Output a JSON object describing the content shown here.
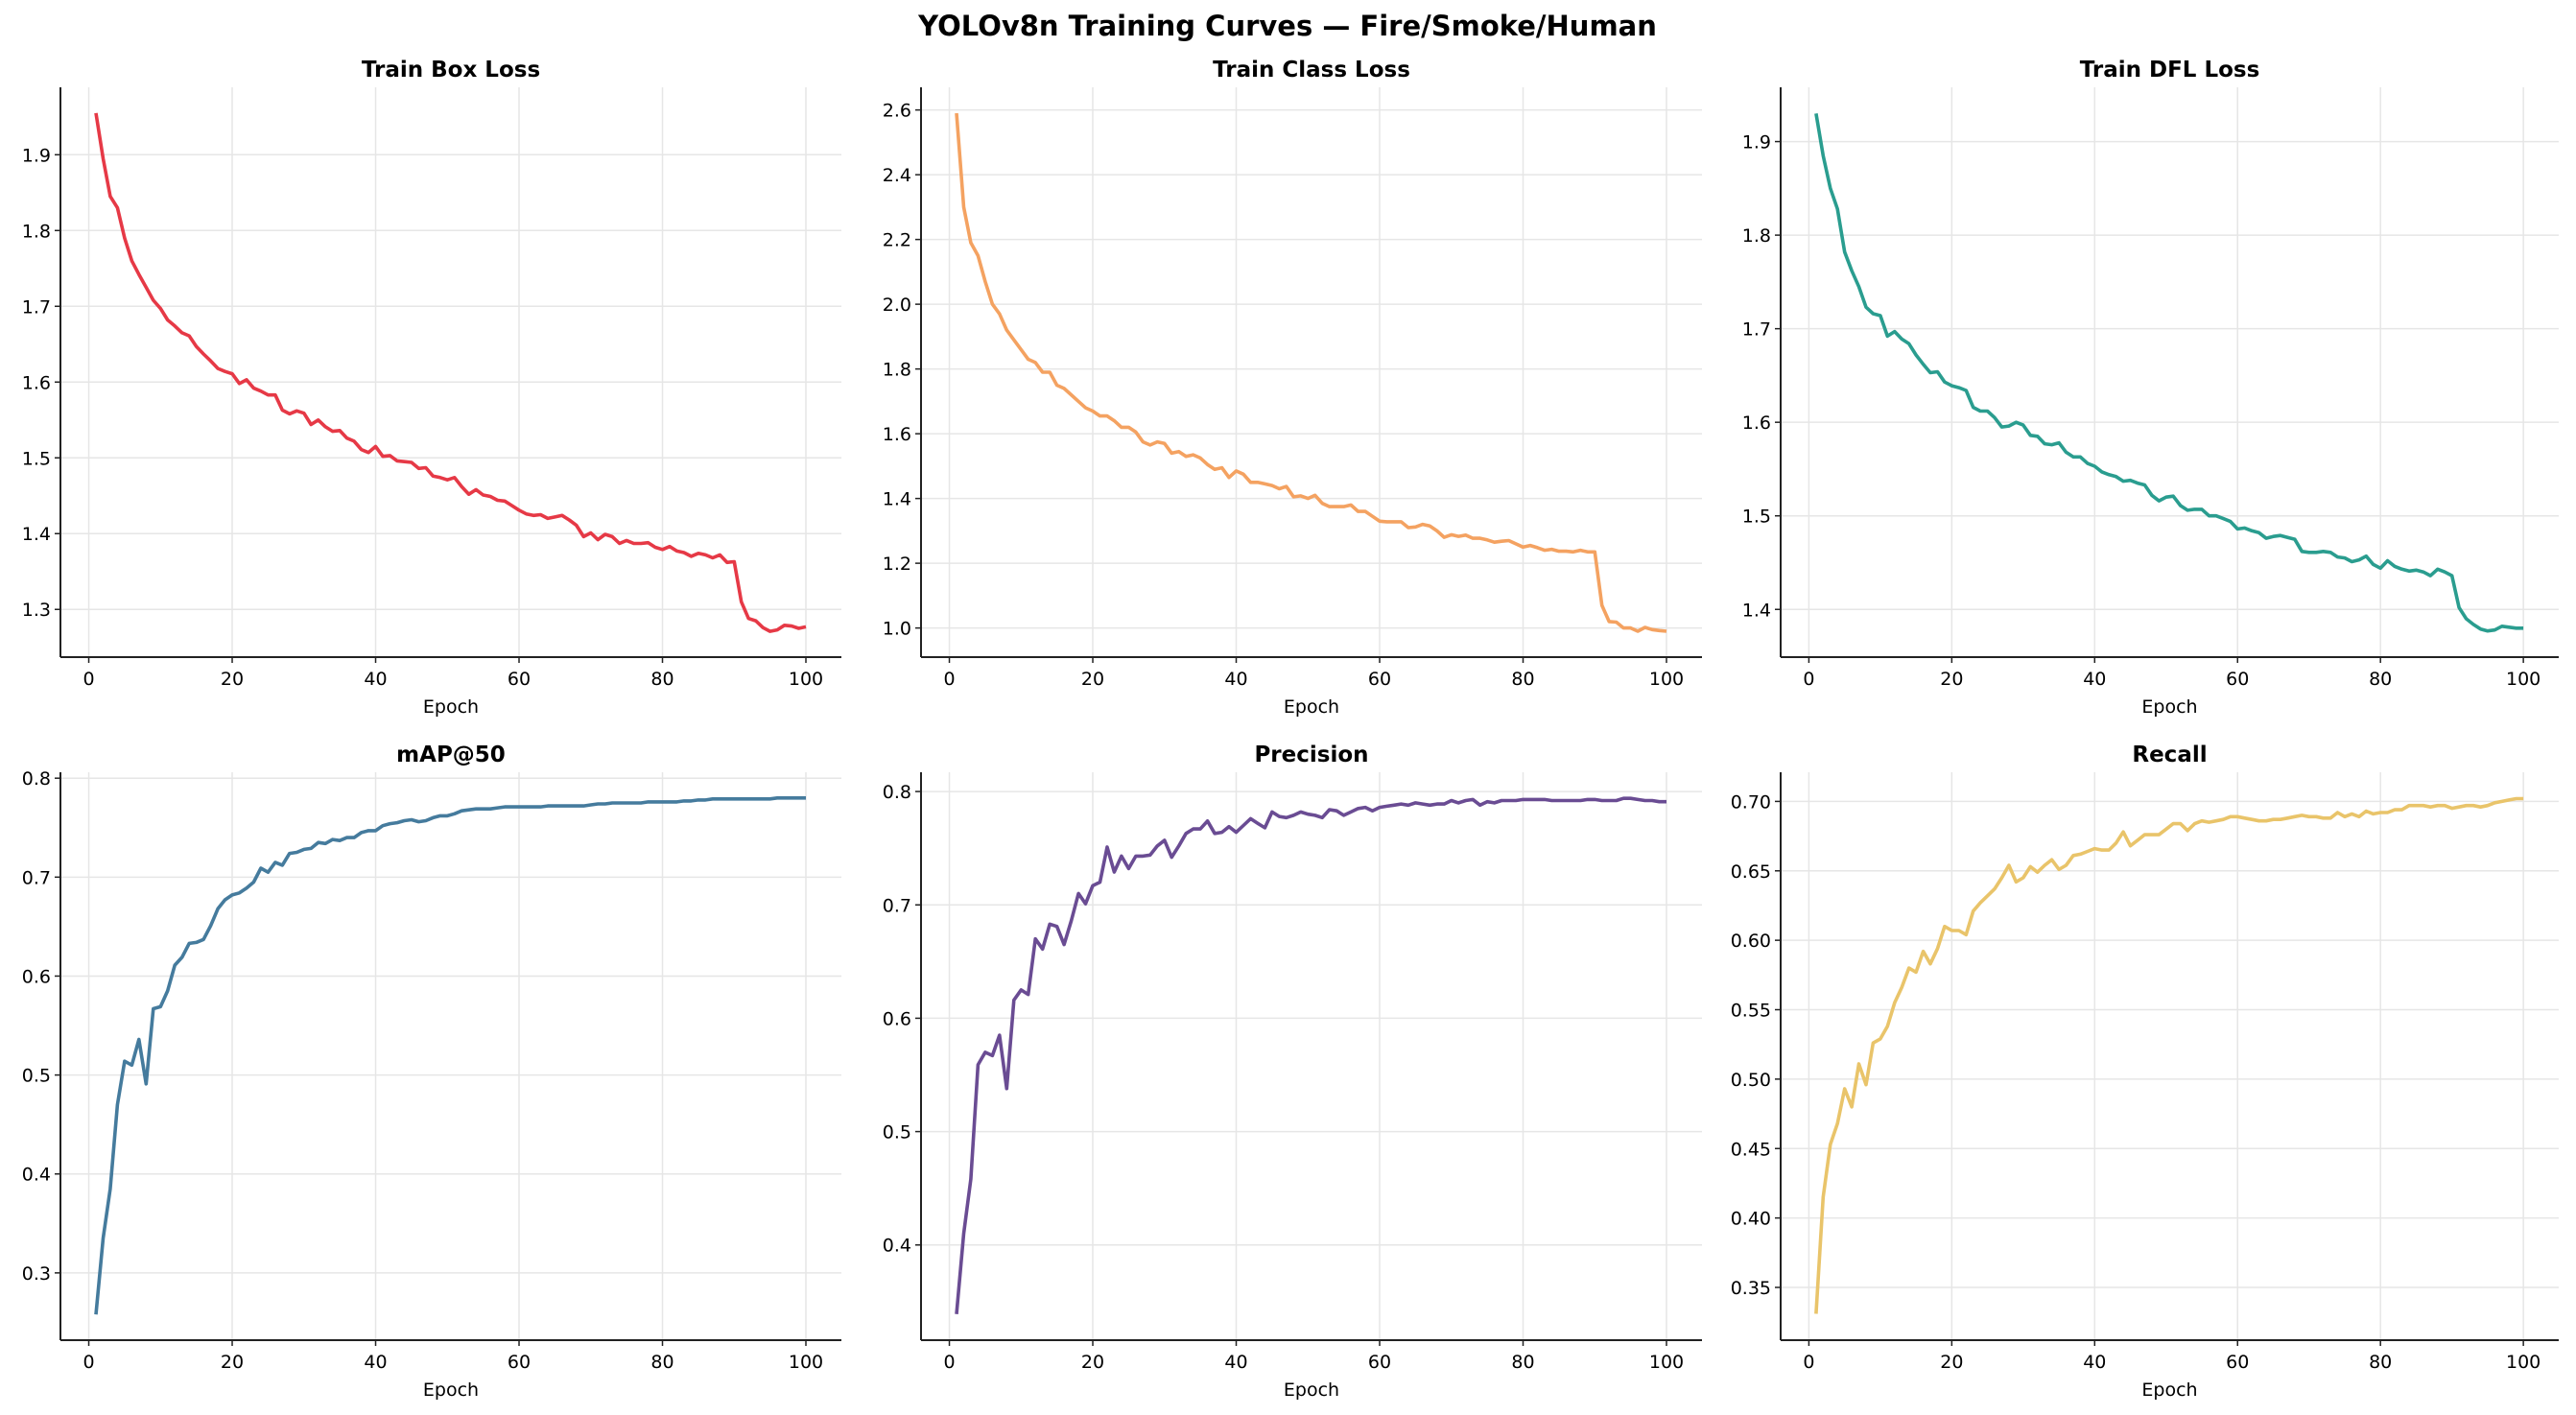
{
  "figure": {
    "title": "YOLOv8n Training Curves — Fire/Smoke/Human"
  },
  "chart_data": [
    {
      "type": "line",
      "title": "Train Box Loss",
      "xlabel": "Epoch",
      "ylabel": "",
      "color": "#e63946",
      "grid": true,
      "xlim": [
        -3.95,
        104.95
      ],
      "ylim": [
        1.237,
        1.989
      ],
      "xticks": [
        0,
        20,
        40,
        60,
        80,
        100
      ],
      "xtick_labels": [
        "0",
        "20",
        "40",
        "60",
        "80",
        "100"
      ],
      "yticks": [
        1.3,
        1.4,
        1.5,
        1.6,
        1.7,
        1.8,
        1.9
      ],
      "ytick_labels": [
        "1.3",
        "1.4",
        "1.5",
        "1.6",
        "1.7",
        "1.8",
        "1.9"
      ],
      "x_start": 1,
      "values": [
        1.955,
        1.895,
        1.845,
        1.83,
        1.79,
        1.76,
        1.742,
        1.725,
        1.708,
        1.697,
        1.682,
        1.674,
        1.665,
        1.661,
        1.647,
        1.637,
        1.628,
        1.618,
        1.614,
        1.611,
        1.598,
        1.603,
        1.592,
        1.588,
        1.583,
        1.583,
        1.563,
        1.558,
        1.562,
        1.559,
        1.544,
        1.55,
        1.541,
        1.535,
        1.536,
        1.526,
        1.522,
        1.511,
        1.507,
        1.515,
        1.502,
        1.503,
        1.496,
        1.495,
        1.494,
        1.486,
        1.487,
        1.476,
        1.474,
        1.471,
        1.474,
        1.462,
        1.452,
        1.458,
        1.451,
        1.449,
        1.444,
        1.443,
        1.437,
        1.431,
        1.426,
        1.424,
        1.425,
        1.42,
        1.422,
        1.424,
        1.418,
        1.411,
        1.396,
        1.401,
        1.392,
        1.399,
        1.396,
        1.387,
        1.391,
        1.387,
        1.387,
        1.388,
        1.382,
        1.379,
        1.383,
        1.377,
        1.375,
        1.37,
        1.374,
        1.372,
        1.368,
        1.372,
        1.362,
        1.363,
        1.31,
        1.288,
        1.285,
        1.276,
        1.271,
        1.273,
        1.279,
        1.278,
        1.275,
        1.277
      ]
    },
    {
      "type": "line",
      "title": "Train Class Loss",
      "xlabel": "Epoch",
      "ylabel": "",
      "color": "#f4a261",
      "grid": true,
      "xlim": [
        -3.95,
        104.95
      ],
      "ylim": [
        0.91,
        2.67
      ],
      "xticks": [
        0,
        20,
        40,
        60,
        80,
        100
      ],
      "xtick_labels": [
        "0",
        "20",
        "40",
        "60",
        "80",
        "100"
      ],
      "yticks": [
        1.0,
        1.2,
        1.4,
        1.6,
        1.8,
        2.0,
        2.2,
        2.4,
        2.6
      ],
      "ytick_labels": [
        "1.0",
        "1.2",
        "1.4",
        "1.6",
        "1.8",
        "2.0",
        "2.2",
        "2.4",
        "2.6"
      ],
      "x_start": 1,
      "values": [
        2.59,
        2.3,
        2.19,
        2.15,
        2.07,
        2.0,
        1.97,
        1.92,
        1.89,
        1.86,
        1.83,
        1.82,
        1.79,
        1.79,
        1.75,
        1.74,
        1.72,
        1.7,
        1.68,
        1.67,
        1.655,
        1.655,
        1.64,
        1.62,
        1.62,
        1.605,
        1.575,
        1.565,
        1.575,
        1.57,
        1.54,
        1.545,
        1.53,
        1.535,
        1.525,
        1.505,
        1.49,
        1.495,
        1.465,
        1.485,
        1.475,
        1.45,
        1.45,
        1.445,
        1.44,
        1.43,
        1.437,
        1.405,
        1.408,
        1.4,
        1.41,
        1.385,
        1.375,
        1.375,
        1.375,
        1.38,
        1.36,
        1.36,
        1.345,
        1.33,
        1.328,
        1.328,
        1.328,
        1.31,
        1.312,
        1.32,
        1.315,
        1.3,
        1.28,
        1.288,
        1.283,
        1.287,
        1.277,
        1.277,
        1.272,
        1.265,
        1.268,
        1.27,
        1.26,
        1.25,
        1.255,
        1.248,
        1.24,
        1.243,
        1.237,
        1.237,
        1.235,
        1.24,
        1.235,
        1.235,
        1.07,
        1.02,
        1.018,
        1.0,
        1.0,
        0.99,
        1.002,
        0.995,
        0.992,
        0.99
      ]
    },
    {
      "type": "line",
      "title": "Train DFL Loss",
      "xlabel": "Epoch",
      "ylabel": "",
      "color": "#2a9d8f",
      "grid": true,
      "xlim": [
        -3.95,
        104.95
      ],
      "ylim": [
        1.349,
        1.958
      ],
      "xticks": [
        0,
        20,
        40,
        60,
        80,
        100
      ],
      "xtick_labels": [
        "0",
        "20",
        "40",
        "60",
        "80",
        "100"
      ],
      "yticks": [
        1.4,
        1.5,
        1.6,
        1.7,
        1.8,
        1.9
      ],
      "ytick_labels": [
        "1.4",
        "1.5",
        "1.6",
        "1.7",
        "1.8",
        "1.9"
      ],
      "x_start": 1,
      "values": [
        1.93,
        1.885,
        1.85,
        1.828,
        1.782,
        1.762,
        1.745,
        1.723,
        1.716,
        1.714,
        1.692,
        1.697,
        1.689,
        1.684,
        1.672,
        1.662,
        1.653,
        1.654,
        1.643,
        1.639,
        1.637,
        1.634,
        1.616,
        1.612,
        1.612,
        1.605,
        1.595,
        1.596,
        1.6,
        1.597,
        1.586,
        1.585,
        1.577,
        1.576,
        1.578,
        1.568,
        1.563,
        1.563,
        1.556,
        1.553,
        1.547,
        1.544,
        1.542,
        1.537,
        1.538,
        1.535,
        1.533,
        1.522,
        1.516,
        1.52,
        1.521,
        1.511,
        1.506,
        1.507,
        1.507,
        1.5,
        1.5,
        1.497,
        1.494,
        1.486,
        1.487,
        1.484,
        1.482,
        1.476,
        1.478,
        1.479,
        1.477,
        1.475,
        1.462,
        1.461,
        1.461,
        1.462,
        1.461,
        1.456,
        1.455,
        1.451,
        1.453,
        1.457,
        1.448,
        1.444,
        1.452,
        1.446,
        1.443,
        1.441,
        1.442,
        1.44,
        1.436,
        1.443,
        1.44,
        1.436,
        1.402,
        1.39,
        1.384,
        1.379,
        1.377,
        1.378,
        1.382,
        1.381,
        1.38,
        1.38
      ]
    },
    {
      "type": "line",
      "title": "mAP@50",
      "xlabel": "Epoch",
      "ylabel": "",
      "color": "#457b9d",
      "grid": true,
      "xlim": [
        -3.95,
        104.95
      ],
      "ylim": [
        0.232,
        0.806
      ],
      "xticks": [
        0,
        20,
        40,
        60,
        80,
        100
      ],
      "xtick_labels": [
        "0",
        "20",
        "40",
        "60",
        "80",
        "100"
      ],
      "yticks": [
        0.3,
        0.4,
        0.5,
        0.6,
        0.7,
        0.8
      ],
      "ytick_labels": [
        "0.3",
        "0.4",
        "0.5",
        "0.6",
        "0.7",
        "0.8"
      ],
      "x_start": 1,
      "values": [
        0.258,
        0.335,
        0.385,
        0.47,
        0.514,
        0.51,
        0.536,
        0.491,
        0.567,
        0.569,
        0.585,
        0.611,
        0.619,
        0.633,
        0.634,
        0.637,
        0.651,
        0.668,
        0.677,
        0.682,
        0.684,
        0.689,
        0.695,
        0.709,
        0.705,
        0.715,
        0.712,
        0.724,
        0.725,
        0.728,
        0.729,
        0.735,
        0.734,
        0.738,
        0.737,
        0.74,
        0.74,
        0.745,
        0.747,
        0.747,
        0.752,
        0.754,
        0.755,
        0.757,
        0.758,
        0.756,
        0.757,
        0.76,
        0.762,
        0.762,
        0.764,
        0.767,
        0.768,
        0.769,
        0.769,
        0.769,
        0.77,
        0.771,
        0.771,
        0.771,
        0.771,
        0.771,
        0.771,
        0.772,
        0.772,
        0.772,
        0.772,
        0.772,
        0.772,
        0.773,
        0.774,
        0.774,
        0.775,
        0.775,
        0.775,
        0.775,
        0.775,
        0.776,
        0.776,
        0.776,
        0.776,
        0.776,
        0.777,
        0.777,
        0.778,
        0.778,
        0.779,
        0.779,
        0.779,
        0.779,
        0.779,
        0.779,
        0.779,
        0.779,
        0.779,
        0.78,
        0.78,
        0.78,
        0.78,
        0.78
      ]
    },
    {
      "type": "line",
      "title": "Precision",
      "xlabel": "Epoch",
      "ylabel": "",
      "color": "#6a4c93",
      "grid": true,
      "xlim": [
        -3.95,
        104.95
      ],
      "ylim": [
        0.316,
        0.817
      ],
      "xticks": [
        0,
        20,
        40,
        60,
        80,
        100
      ],
      "xtick_labels": [
        "0",
        "20",
        "40",
        "60",
        "80",
        "100"
      ],
      "yticks": [
        0.4,
        0.5,
        0.6,
        0.7,
        0.8
      ],
      "ytick_labels": [
        "0.4",
        "0.5",
        "0.6",
        "0.7",
        "0.8"
      ],
      "x_start": 1,
      "values": [
        0.339,
        0.41,
        0.458,
        0.559,
        0.57,
        0.567,
        0.585,
        0.538,
        0.616,
        0.625,
        0.621,
        0.67,
        0.661,
        0.683,
        0.681,
        0.665,
        0.686,
        0.71,
        0.701,
        0.717,
        0.72,
        0.751,
        0.729,
        0.743,
        0.732,
        0.743,
        0.743,
        0.744,
        0.752,
        0.757,
        0.742,
        0.752,
        0.763,
        0.767,
        0.767,
        0.774,
        0.763,
        0.764,
        0.769,
        0.764,
        0.77,
        0.776,
        0.772,
        0.768,
        0.782,
        0.778,
        0.777,
        0.779,
        0.782,
        0.78,
        0.779,
        0.777,
        0.784,
        0.783,
        0.779,
        0.782,
        0.785,
        0.786,
        0.783,
        0.786,
        0.787,
        0.788,
        0.789,
        0.788,
        0.79,
        0.789,
        0.788,
        0.789,
        0.789,
        0.792,
        0.79,
        0.792,
        0.793,
        0.788,
        0.791,
        0.79,
        0.792,
        0.792,
        0.792,
        0.793,
        0.793,
        0.793,
        0.793,
        0.792,
        0.792,
        0.792,
        0.792,
        0.792,
        0.793,
        0.793,
        0.792,
        0.792,
        0.792,
        0.794,
        0.794,
        0.793,
        0.792,
        0.792,
        0.791,
        0.791
      ]
    },
    {
      "type": "line",
      "title": "Recall",
      "xlabel": "Epoch",
      "ylabel": "",
      "color": "#e9c46a",
      "grid": true,
      "xlim": [
        -3.95,
        104.95
      ],
      "ylim": [
        0.312,
        0.721
      ],
      "xticks": [
        0,
        20,
        40,
        60,
        80,
        100
      ],
      "xtick_labels": [
        "0",
        "20",
        "40",
        "60",
        "80",
        "100"
      ],
      "yticks": [
        0.35,
        0.4,
        0.45,
        0.5,
        0.55,
        0.6,
        0.65,
        0.7
      ],
      "ytick_labels": [
        "0.35",
        "0.40",
        "0.45",
        "0.50",
        "0.55",
        "0.60",
        "0.65",
        "0.70"
      ],
      "x_start": 1,
      "values": [
        0.331,
        0.415,
        0.453,
        0.468,
        0.493,
        0.48,
        0.511,
        0.496,
        0.526,
        0.529,
        0.538,
        0.555,
        0.566,
        0.58,
        0.577,
        0.592,
        0.583,
        0.594,
        0.61,
        0.607,
        0.607,
        0.604,
        0.621,
        0.627,
        0.632,
        0.637,
        0.645,
        0.654,
        0.642,
        0.645,
        0.653,
        0.649,
        0.654,
        0.658,
        0.651,
        0.654,
        0.661,
        0.662,
        0.664,
        0.666,
        0.665,
        0.665,
        0.67,
        0.678,
        0.668,
        0.672,
        0.676,
        0.676,
        0.676,
        0.68,
        0.684,
        0.684,
        0.679,
        0.684,
        0.686,
        0.685,
        0.686,
        0.687,
        0.689,
        0.689,
        0.688,
        0.687,
        0.686,
        0.686,
        0.687,
        0.687,
        0.688,
        0.689,
        0.69,
        0.689,
        0.689,
        0.688,
        0.688,
        0.692,
        0.689,
        0.691,
        0.689,
        0.693,
        0.691,
        0.692,
        0.692,
        0.694,
        0.694,
        0.697,
        0.697,
        0.697,
        0.696,
        0.697,
        0.697,
        0.695,
        0.696,
        0.697,
        0.697,
        0.696,
        0.697,
        0.699,
        0.7,
        0.701,
        0.702,
        0.702
      ]
    }
  ]
}
